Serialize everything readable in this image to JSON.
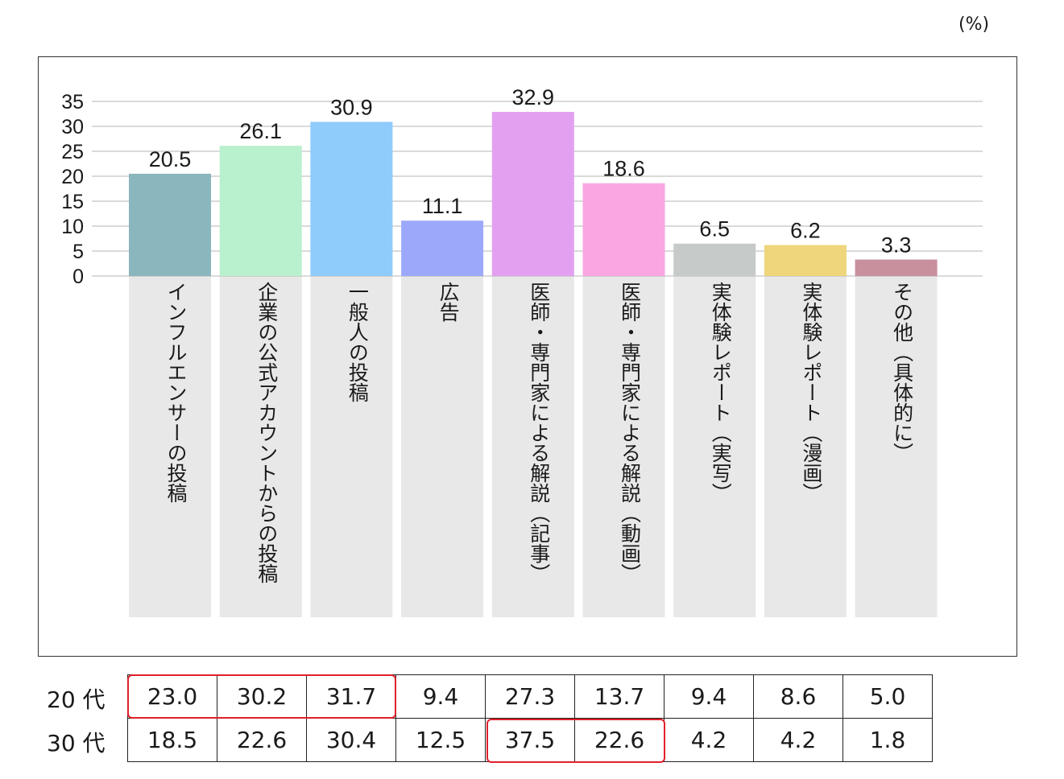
{
  "unit_label": "(%)",
  "chart_data": {
    "type": "bar",
    "ylim": [
      0,
      35
    ],
    "yticks": [
      "0",
      "5",
      "10",
      "15",
      "20",
      "25",
      "30",
      "35"
    ],
    "categories": [
      "インフルエンサーの投稿",
      "企業の公式アカウントからの投稿",
      "一般人の投稿",
      "広告",
      "医師・専門家による解説（記事）",
      "医師・専門家による解説（動画）",
      "実体験レポート（実写）",
      "実体験レポート（漫画）",
      "その他（具体的に）"
    ],
    "values": [
      20.5,
      26.1,
      30.9,
      11.1,
      32.9,
      18.6,
      6.5,
      6.2,
      3.3
    ],
    "value_labels": [
      "20.5",
      "26.1",
      "30.9",
      "11.1",
      "32.9",
      "18.6",
      "6.5",
      "6.2",
      "3.3"
    ],
    "colors": [
      "#8ab6be",
      "#b9f0ce",
      "#8fcbfb",
      "#9ca9fb",
      "#e3a0f0",
      "#f9a6e2",
      "#c6cac8",
      "#efd57b",
      "#c88f9d"
    ],
    "grid": true
  },
  "table": {
    "rows": [
      {
        "label": "20 代",
        "values": [
          "23.0",
          "30.2",
          "31.7",
          "9.4",
          "27.3",
          "13.7",
          "9.4",
          "8.6",
          "5.0"
        ]
      },
      {
        "label": "30 代",
        "values": [
          "18.5",
          "22.6",
          "30.4",
          "12.5",
          "37.5",
          "22.6",
          "4.2",
          "4.2",
          "1.8"
        ]
      }
    ],
    "highlight_color": "#e0202a"
  }
}
